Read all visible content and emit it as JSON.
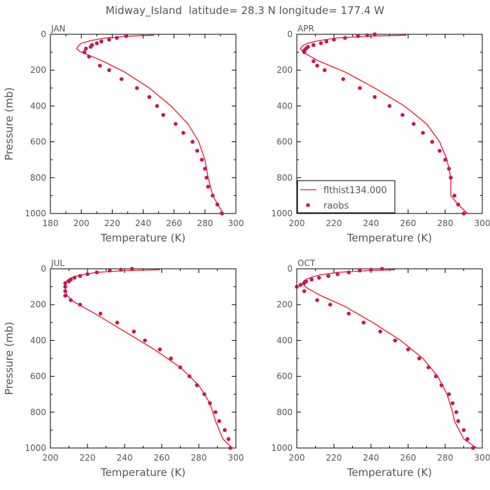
{
  "figure": {
    "title": "Midway_Island  latitude= 28.3 N longitude= 177.4 W"
  },
  "legend": {
    "entries": [
      {
        "label": "flthist134.000",
        "kind": "line"
      },
      {
        "label": "raobs",
        "kind": "marker"
      }
    ]
  },
  "colors": {
    "model_line": "#e8191f",
    "obs_marker": "#c4185a",
    "axis": "#000000",
    "text": "#555555"
  },
  "chart_data": [
    {
      "type": "line",
      "panel": "JAN",
      "title": "JAN",
      "xlabel": "Temperature (K)",
      "ylabel": "Pressure (mb)",
      "xlim": [
        180,
        300
      ],
      "ylim": [
        1000,
        0
      ],
      "y_inverted": true,
      "xticks": [
        180,
        200,
        220,
        240,
        260,
        280,
        300
      ],
      "yticks": [
        0,
        200,
        400,
        600,
        800,
        1000
      ],
      "series": [
        {
          "name": "flthist134.000",
          "kind": "line",
          "x": [
            247,
            232,
            216,
            206,
            200,
            198,
            197,
            199,
            203,
            214,
            228,
            244,
            258,
            269,
            276,
            280,
            282,
            285,
            289,
            292
          ],
          "y": [
            5,
            10,
            20,
            35,
            50,
            65,
            80,
            95,
            110,
            150,
            210,
            300,
            400,
            500,
            600,
            700,
            800,
            900,
            960,
            1000
          ]
        },
        {
          "name": "raobs",
          "kind": "marker",
          "x": [
            229,
            223,
            218,
            213,
            210,
            207,
            206,
            203,
            202,
            205,
            212,
            218,
            226,
            236,
            244,
            249,
            253,
            261,
            266,
            272,
            275,
            278,
            280,
            281,
            282,
            285,
            288,
            291
          ],
          "y": [
            10,
            20,
            30,
            40,
            50,
            60,
            70,
            80,
            100,
            125,
            175,
            200,
            250,
            300,
            350,
            400,
            450,
            500,
            550,
            600,
            650,
            700,
            750,
            800,
            850,
            900,
            950,
            1000
          ]
        }
      ]
    },
    {
      "type": "line",
      "panel": "APR",
      "title": "APR",
      "xlabel": "Temperature (K)",
      "ylabel": "",
      "xlim": [
        200,
        300
      ],
      "ylim": [
        1000,
        0
      ],
      "y_inverted": true,
      "xticks": [
        200,
        220,
        240,
        260,
        280,
        300
      ],
      "yticks": [
        0,
        200,
        400,
        600,
        800,
        1000
      ],
      "series": [
        {
          "name": "flthist134.000",
          "kind": "line",
          "x": [
            259,
            240,
            222,
            212,
            206,
            203,
            202,
            203,
            205,
            212,
            226,
            242,
            258,
            270,
            277,
            281,
            283,
            283,
            287,
            292
          ],
          "y": [
            5,
            10,
            20,
            35,
            50,
            65,
            80,
            95,
            110,
            150,
            210,
            300,
            400,
            500,
            600,
            700,
            800,
            900,
            950,
            1000
          ]
        },
        {
          "name": "raobs",
          "kind": "marker",
          "x": [
            242,
            238,
            233,
            226,
            220,
            216,
            213,
            209,
            206,
            205,
            204,
            204,
            209,
            211,
            215,
            225,
            234,
            242,
            250,
            257,
            263,
            268,
            273,
            277,
            280,
            282,
            283,
            285,
            287,
            290
          ],
          "y": [
            0,
            5,
            10,
            20,
            30,
            40,
            50,
            60,
            70,
            80,
            90,
            100,
            150,
            175,
            200,
            250,
            300,
            350,
            400,
            450,
            500,
            550,
            600,
            650,
            700,
            750,
            800,
            900,
            950,
            1000
          ]
        }
      ]
    },
    {
      "type": "line",
      "panel": "JUL",
      "title": "JUL",
      "xlabel": "Temperature (K)",
      "ylabel": "Pressure (mb)",
      "xlim": [
        200,
        300
      ],
      "ylim": [
        1000,
        0
      ],
      "y_inverted": true,
      "xticks": [
        200,
        220,
        240,
        260,
        280,
        300
      ],
      "yticks": [
        0,
        200,
        400,
        600,
        800,
        1000
      ],
      "series": [
        {
          "name": "flthist134.000",
          "kind": "line",
          "x": [
            259,
            240,
            225,
            216,
            211,
            209,
            208,
            208,
            208,
            209,
            212,
            224,
            240,
            256,
            270,
            280,
            286,
            289,
            293,
            298
          ],
          "y": [
            5,
            10,
            20,
            35,
            50,
            65,
            80,
            95,
            110,
            150,
            180,
            250,
            350,
            450,
            550,
            650,
            750,
            850,
            950,
            1000
          ]
        },
        {
          "name": "raobs",
          "kind": "marker",
          "x": [
            244,
            238,
            232,
            225,
            220,
            216,
            213,
            211,
            210,
            208,
            208,
            208,
            208,
            211,
            216,
            227,
            236,
            245,
            251,
            259,
            265,
            270,
            275,
            279,
            283,
            286,
            289,
            291,
            294,
            296,
            297
          ],
          "y": [
            0,
            5,
            10,
            20,
            30,
            40,
            50,
            60,
            70,
            80,
            100,
            125,
            150,
            175,
            200,
            250,
            300,
            350,
            400,
            450,
            500,
            550,
            600,
            650,
            700,
            750,
            800,
            850,
            900,
            950,
            1000
          ]
        }
      ]
    },
    {
      "type": "line",
      "panel": "OCT",
      "title": "OCT",
      "xlabel": "Temperature (K)",
      "ylabel": "",
      "xlim": [
        200,
        300
      ],
      "ylim": [
        1000,
        0
      ],
      "y_inverted": true,
      "xticks": [
        200,
        220,
        240,
        260,
        280,
        300
      ],
      "yticks": [
        0,
        200,
        400,
        600,
        800,
        1000
      ],
      "series": [
        {
          "name": "flthist134.000",
          "kind": "line",
          "x": [
            253,
            238,
            222,
            212,
            207,
            204,
            203,
            204,
            206,
            213,
            226,
            241,
            256,
            268,
            276,
            281,
            284,
            285,
            290,
            297
          ],
          "y": [
            5,
            10,
            20,
            35,
            50,
            65,
            80,
            95,
            110,
            150,
            210,
            300,
            400,
            500,
            600,
            700,
            800,
            850,
            950,
            1000
          ]
        },
        {
          "name": "raobs",
          "kind": "marker",
          "x": [
            246,
            240,
            234,
            228,
            222,
            217,
            212,
            208,
            205,
            204,
            202,
            200,
            204,
            211,
            218,
            228,
            236,
            245,
            253,
            260,
            266,
            271,
            275,
            278,
            282,
            284,
            286,
            287,
            290,
            292,
            295
          ],
          "y": [
            0,
            5,
            10,
            20,
            30,
            40,
            50,
            60,
            70,
            80,
            90,
            100,
            125,
            175,
            200,
            250,
            300,
            350,
            400,
            450,
            500,
            550,
            600,
            650,
            700,
            750,
            800,
            850,
            900,
            950,
            1000
          ]
        }
      ]
    }
  ]
}
